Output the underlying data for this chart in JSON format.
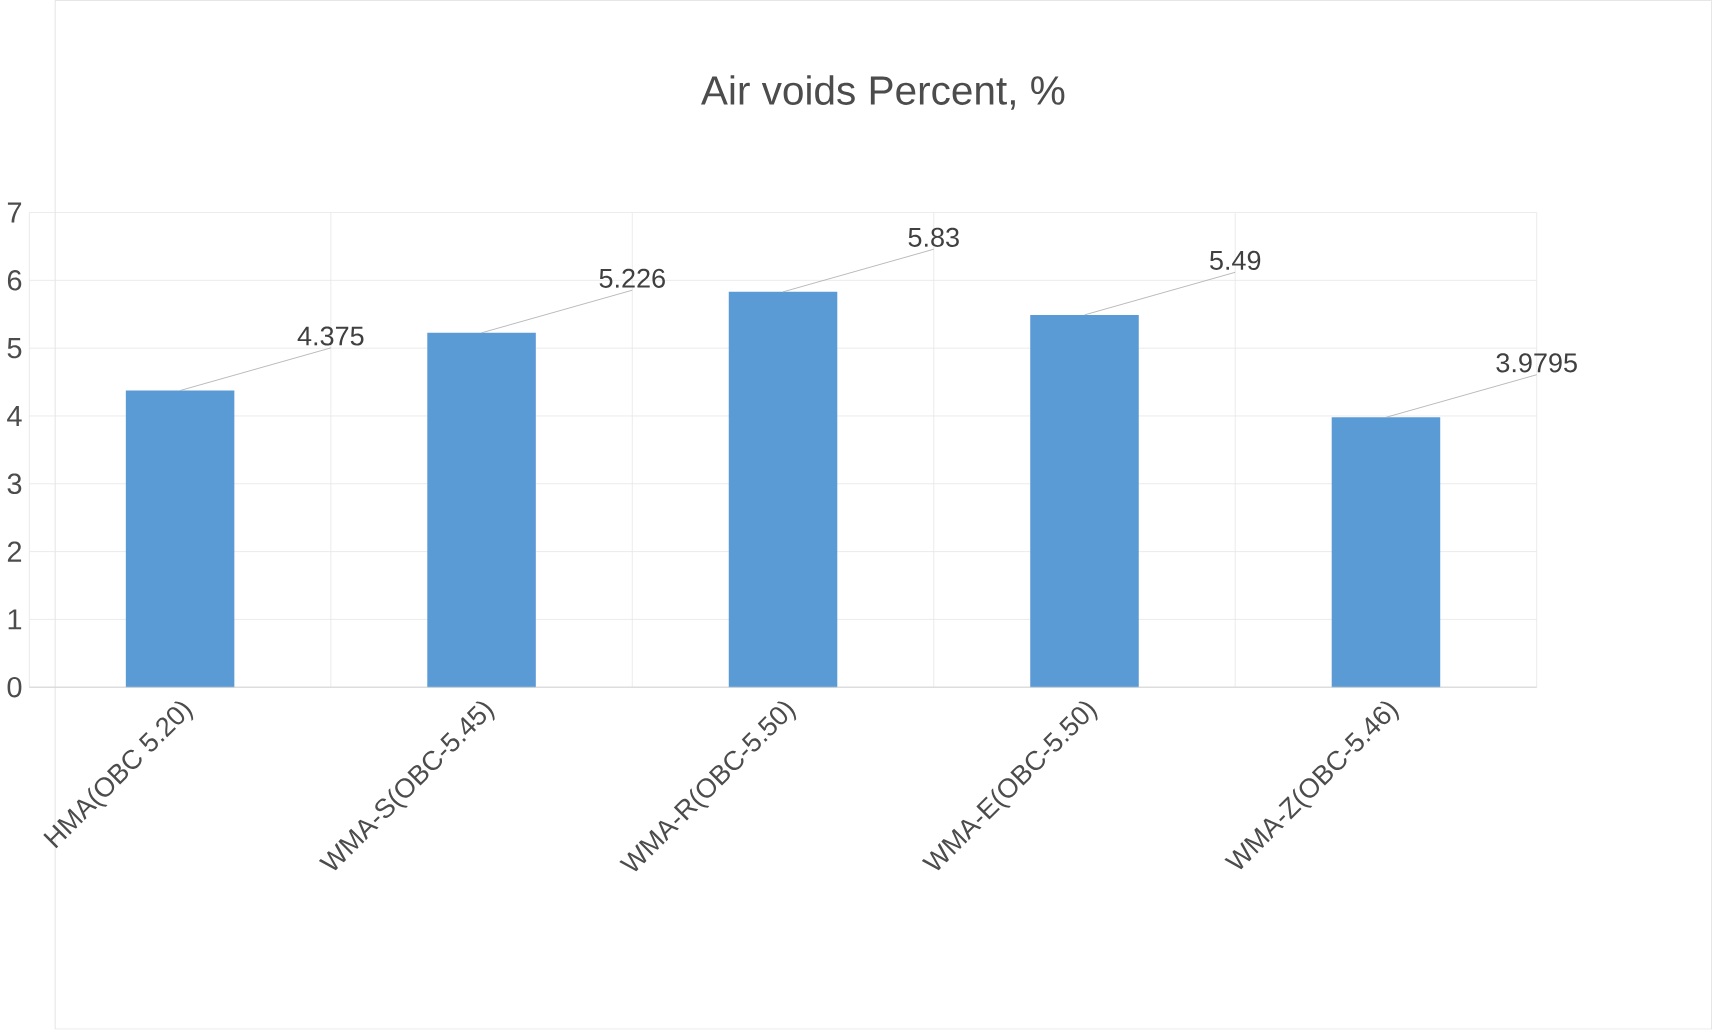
{
  "chart_data": {
    "type": "bar",
    "title": "Air voids Percent, %",
    "categories": [
      "HMA(OBC 5.20)",
      "WMA-S(OBC-5.45)",
      "WMA-R(OBC-5.50)",
      "WMA-E(OBC-5.50)",
      "WMA-Z(OBC-5.46)"
    ],
    "values": [
      4.375,
      5.226,
      5.83,
      5.49,
      3.9795
    ],
    "color": "#5b9bd5",
    "ylim": [
      0,
      7
    ],
    "yticks": [
      0,
      1,
      2,
      3,
      4,
      5,
      6,
      7
    ],
    "grid": true,
    "data_labels": true
  }
}
